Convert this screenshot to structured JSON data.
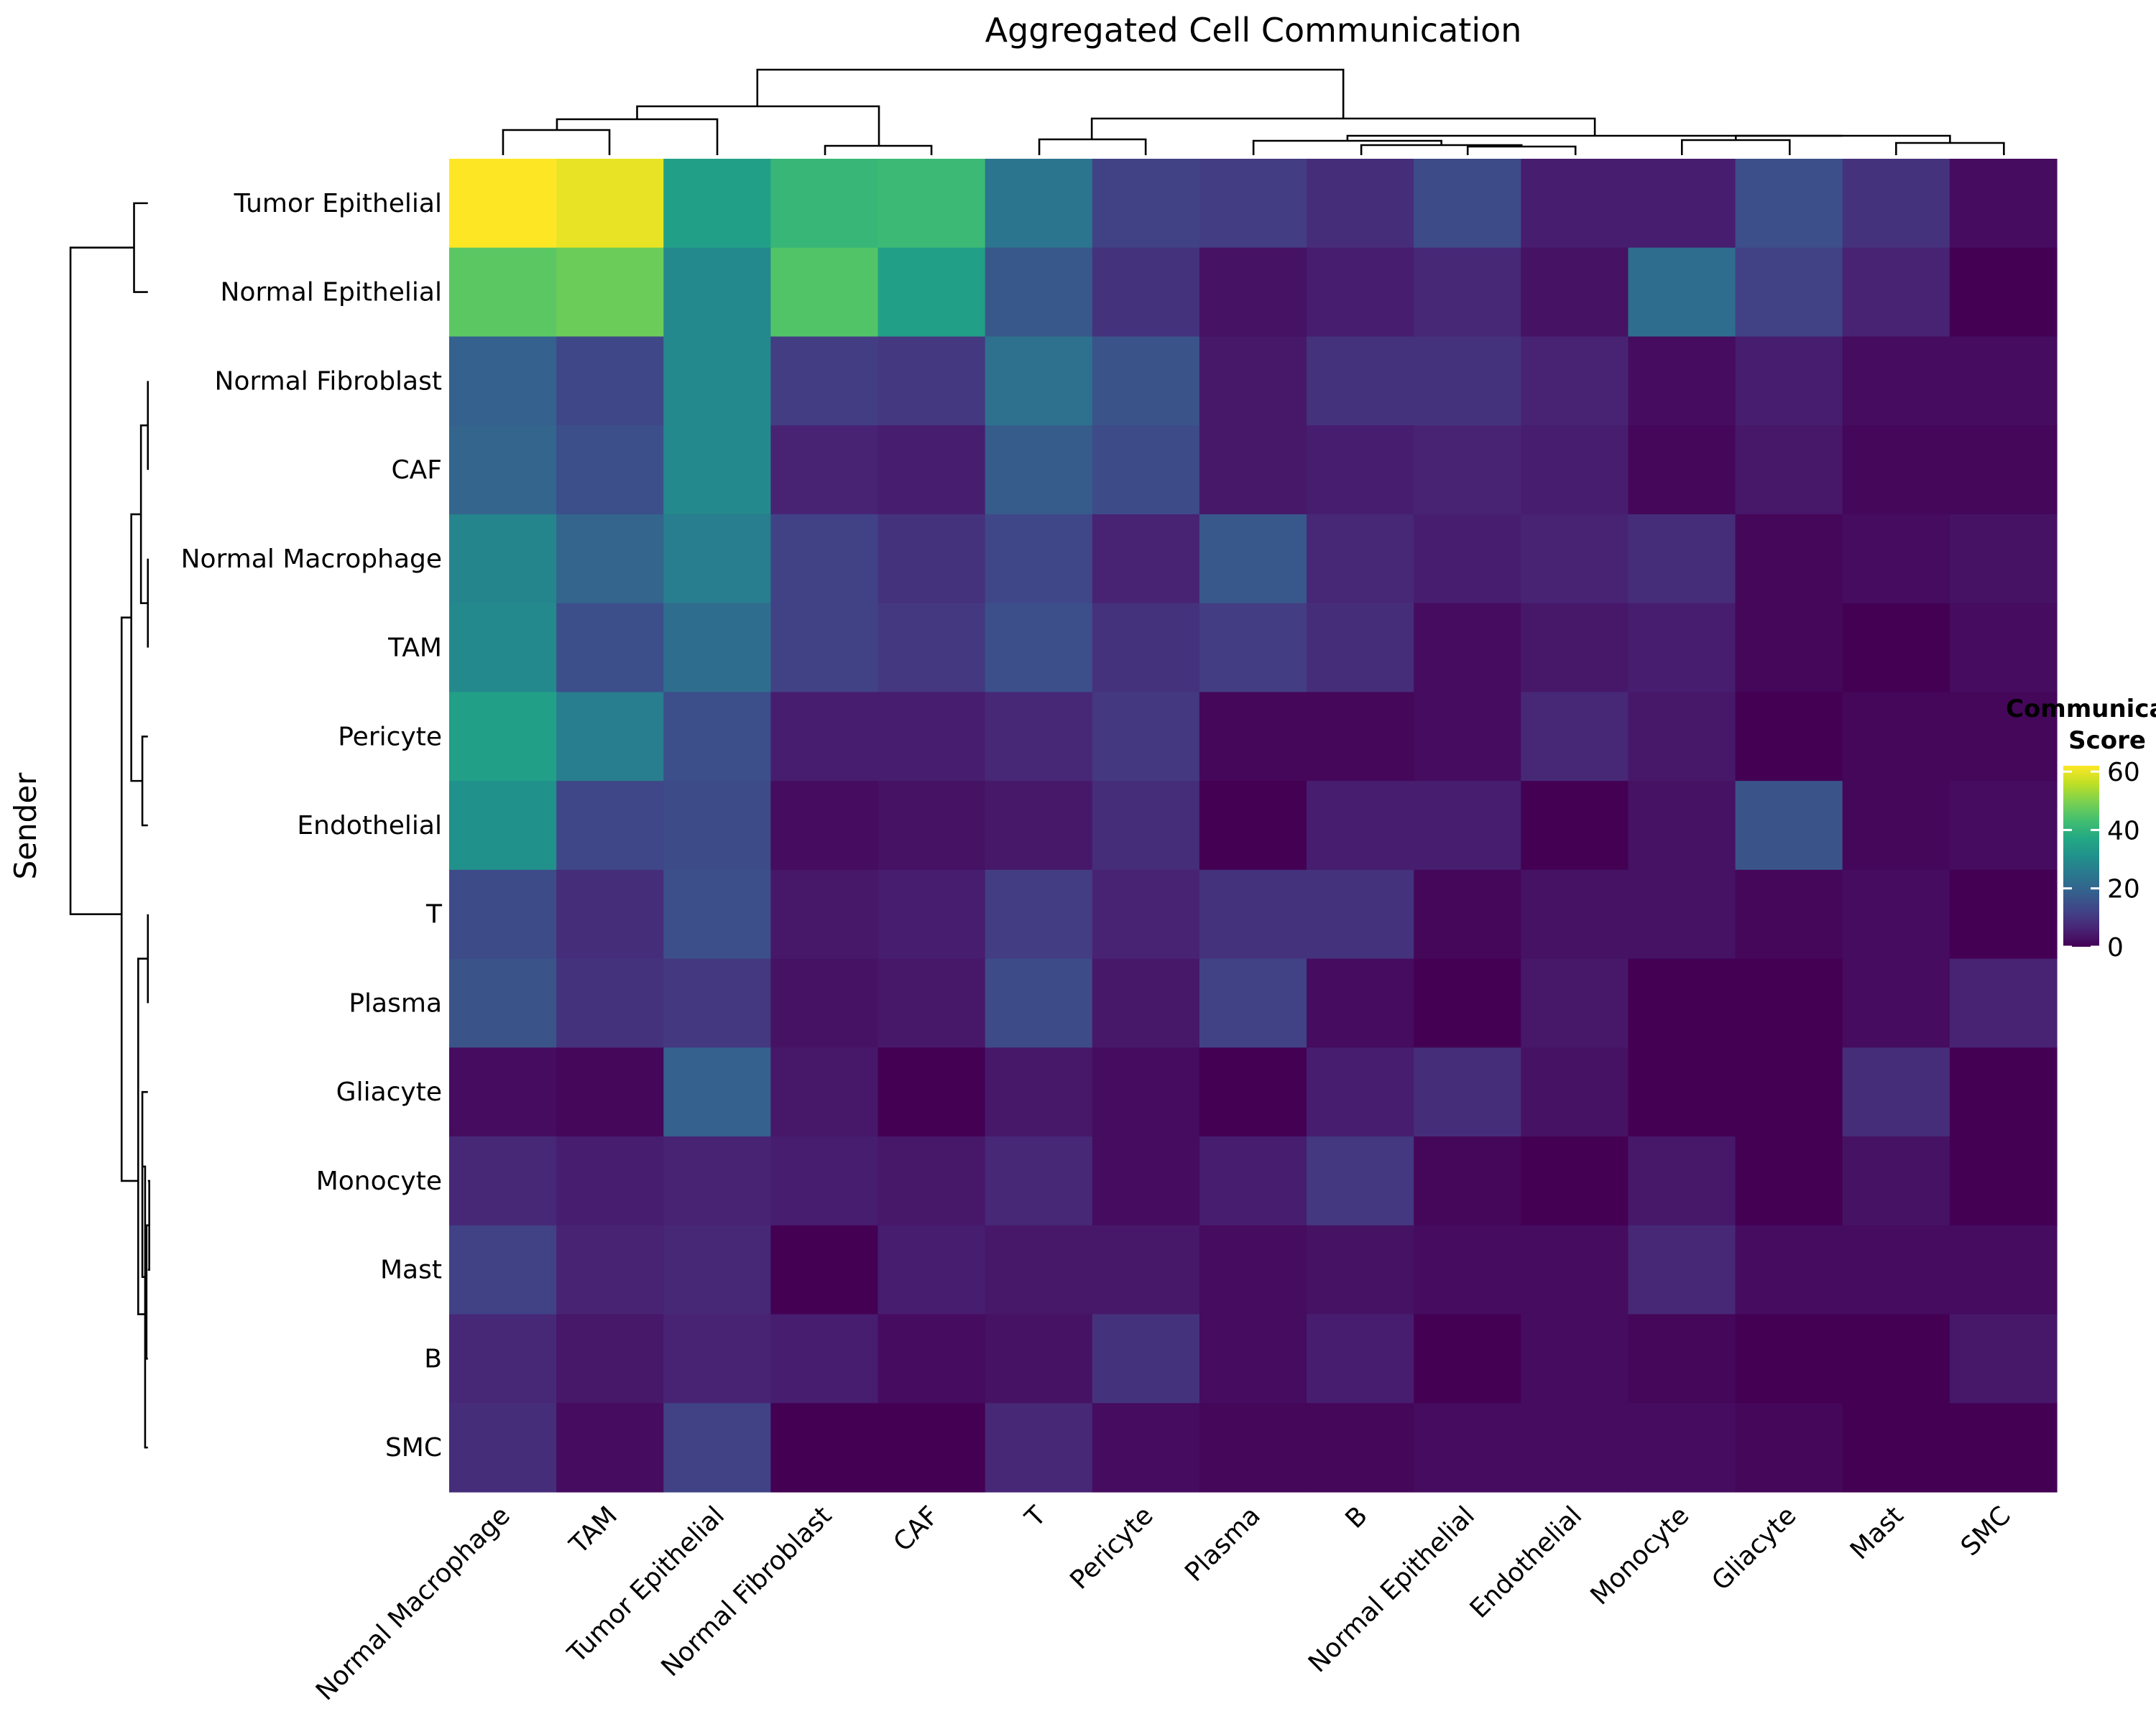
{
  "chart_data": {
    "type": "heatmap",
    "title": "Aggregated Cell Communication",
    "xlabel": "",
    "ylabel": "Sender",
    "colormap": "viridis",
    "colorbar": {
      "title_line1": "Communication",
      "title_line2": "Score",
      "range": [
        0,
        62
      ],
      "ticks": [
        "0",
        "20",
        "40",
        "60"
      ],
      "tick_values": [
        0,
        20,
        40,
        60
      ]
    },
    "legend_placement": "right",
    "grid": false,
    "row_dendrogram": true,
    "column_dendrogram": true,
    "columns": [
      "Normal Macrophage",
      "TAM",
      "Tumor Epithelial",
      "Normal Fibroblast",
      "CAF",
      "T",
      "Pericyte",
      "Plasma",
      "B",
      "Normal Epithelial",
      "Endothelial",
      "Monocyte",
      "Gliacyte",
      "Mast",
      "SMC"
    ],
    "rows": [
      "Tumor Epithelial",
      "Normal Epithelial",
      "Normal Fibroblast",
      "CAF",
      "Normal Macrophage",
      "TAM",
      "Pericyte",
      "Endothelial",
      "T",
      "Plasma",
      "Gliacyte",
      "Monocyte",
      "Mast",
      "B",
      "SMC"
    ],
    "values": [
      [
        62,
        60,
        35,
        41,
        42,
        24,
        12,
        11,
        8,
        14,
        5,
        5,
        15,
        9,
        2
      ],
      [
        46,
        48,
        29,
        45,
        35,
        17,
        9,
        3,
        5,
        7,
        3,
        22,
        12,
        6,
        0
      ],
      [
        19,
        13,
        29,
        11,
        10,
        23,
        16,
        4,
        9,
        9,
        6,
        2,
        5,
        2,
        2
      ],
      [
        20,
        15,
        29,
        6,
        5,
        18,
        14,
        4,
        5,
        6,
        5,
        1,
        4,
        1,
        1
      ],
      [
        28,
        20,
        26,
        12,
        9,
        13,
        6,
        17,
        7,
        5,
        6,
        8,
        1,
        2,
        3
      ],
      [
        29,
        15,
        22,
        12,
        10,
        15,
        9,
        11,
        8,
        2,
        4,
        5,
        1,
        0,
        2
      ],
      [
        35,
        26,
        15,
        5,
        5,
        7,
        10,
        1,
        1,
        2,
        7,
        4,
        0,
        1,
        1
      ],
      [
        31,
        13,
        14,
        2,
        3,
        4,
        8,
        0,
        5,
        5,
        0,
        3,
        16,
        1,
        2
      ],
      [
        14,
        8,
        15,
        4,
        5,
        11,
        6,
        9,
        9,
        1,
        3,
        3,
        1,
        2,
        0
      ],
      [
        16,
        9,
        10,
        3,
        4,
        14,
        4,
        12,
        2,
        0,
        4,
        0,
        0,
        2,
        6
      ],
      [
        2,
        1,
        19,
        4,
        0,
        4,
        2,
        0,
        5,
        8,
        3,
        0,
        0,
        8,
        0
      ],
      [
        7,
        5,
        6,
        5,
        4,
        7,
        2,
        5,
        10,
        1,
        0,
        4,
        0,
        3,
        0
      ],
      [
        12,
        6,
        7,
        0,
        5,
        4,
        4,
        2,
        3,
        2,
        2,
        7,
        2,
        2,
        2
      ],
      [
        7,
        4,
        6,
        5,
        2,
        3,
        9,
        2,
        5,
        0,
        2,
        1,
        0,
        0,
        4
      ],
      [
        8,
        2,
        12,
        0,
        0,
        7,
        2,
        1,
        1,
        2,
        2,
        2,
        1,
        0,
        0
      ]
    ]
  }
}
